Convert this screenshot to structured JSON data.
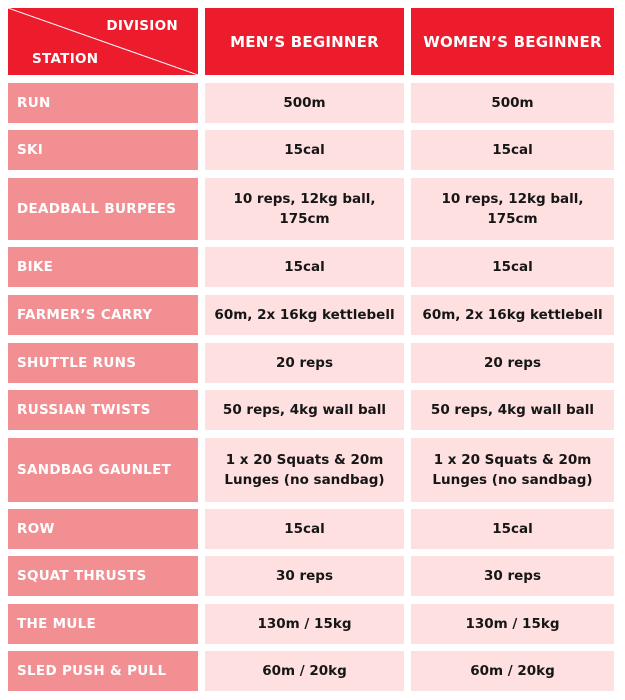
{
  "header": {
    "division_label": "DIVISION",
    "station_label": "STATION",
    "columns": [
      "MEN’S BEGINNER",
      "WOMEN’S BEGINNER"
    ]
  },
  "rows": [
    {
      "station": "RUN",
      "mens": "500m",
      "womens": "500m"
    },
    {
      "station": "SKI",
      "mens": "15cal",
      "womens": "15cal"
    },
    {
      "station": "DEADBALL BURPEES",
      "mens": "10 reps, 12kg ball, 175cm",
      "womens": "10 reps, 12kg ball, 175cm"
    },
    {
      "station": "BIKE",
      "mens": "15cal",
      "womens": "15cal"
    },
    {
      "station": "FARMER’S CARRY",
      "mens": "60m, 2x 16kg kettlebell",
      "womens": "60m, 2x 16kg kettlebell"
    },
    {
      "station": "SHUTTLE RUNS",
      "mens": "20 reps",
      "womens": "20 reps"
    },
    {
      "station": "RUSSIAN TWISTS",
      "mens": "50 reps, 4kg wall ball",
      "womens": "50 reps, 4kg wall ball"
    },
    {
      "station": "SANDBAG GAUNLET",
      "mens": "1 x 20 Squats & 20m Lunges (no sandbag)",
      "womens": "1 x 20 Squats & 20m Lunges (no sandbag)"
    },
    {
      "station": "ROW",
      "mens": "15cal",
      "womens": "15cal"
    },
    {
      "station": "SQUAT THRUSTS",
      "mens": "30 reps",
      "womens": "30 reps"
    },
    {
      "station": "THE MULE",
      "mens": "130m / 15kg",
      "womens": "130m / 15kg"
    },
    {
      "station": "SLED PUSH & PULL",
      "mens": "60m / 20kg",
      "womens": "60m / 20kg"
    }
  ],
  "colors": {
    "header_red": "#ec1c2d",
    "station_pink": "#f28f93",
    "value_pink": "#fde0df"
  }
}
